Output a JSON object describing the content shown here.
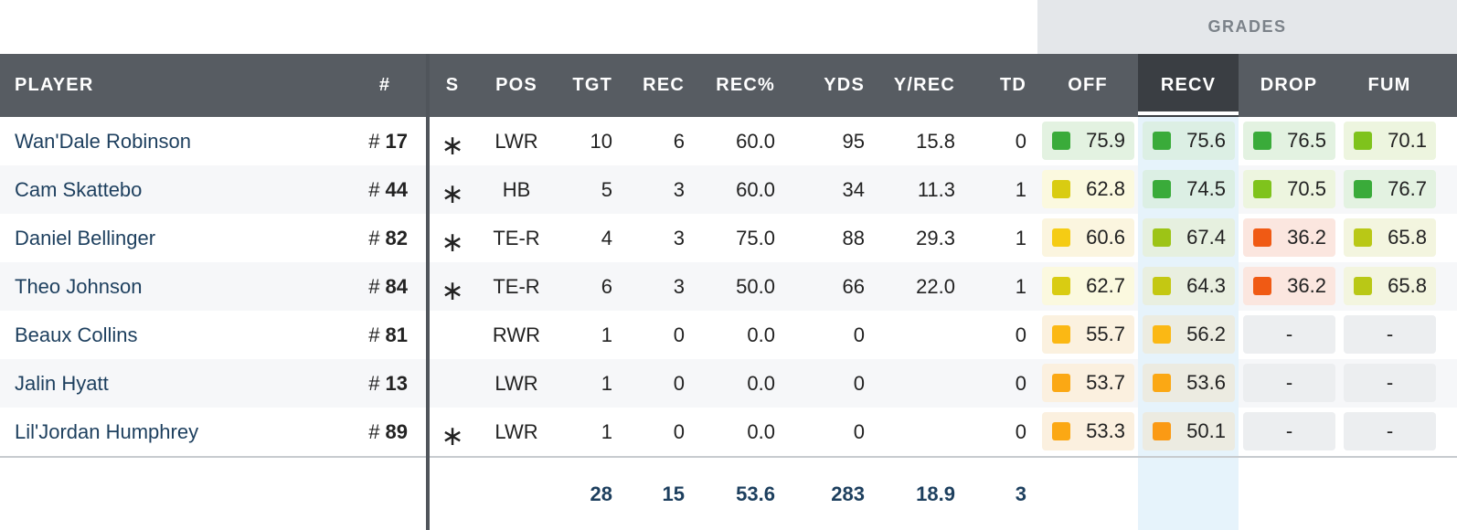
{
  "grades_label": "GRADES",
  "columns": {
    "player": "PLAYER",
    "jersey": "#",
    "s": "S",
    "pos": "POS",
    "tgt": "TGT",
    "rec": "REC",
    "rec_pct": "REC%",
    "yds": "YDS",
    "y_rec": "Y/REC",
    "td": "TD",
    "off": "OFF",
    "recv": "RECV",
    "drop": "DROP",
    "fum": "FUM"
  },
  "jersey_prefix": "#",
  "starter_mark": "∗",
  "empty_grade": "-",
  "colors": {
    "header_bg": "#575c62",
    "active_header_bg": "#3a3e43",
    "name_color": "#1d3f5e"
  },
  "players": [
    {
      "name": "Wan'Dale Robinson",
      "number": "17",
      "starter": true,
      "pos": "LWR",
      "tgt": "10",
      "rec": "6",
      "rec_pct": "60.0",
      "yds": "95",
      "y_rec": "15.8",
      "td": "0",
      "off": {
        "value": "75.9",
        "color": "#3aab3a",
        "bg": "#e3f2e1"
      },
      "recv": {
        "value": "75.6",
        "color": "#3aab3a",
        "bg": "#dcefe4"
      },
      "drop": {
        "value": "76.5",
        "color": "#3aab3a",
        "bg": "#e3f2e1"
      },
      "fum": {
        "value": "70.1",
        "color": "#7fc31c",
        "bg": "#edf5df"
      }
    },
    {
      "name": "Cam Skattebo",
      "number": "44",
      "starter": true,
      "pos": "HB",
      "tgt": "5",
      "rec": "3",
      "rec_pct": "60.0",
      "yds": "34",
      "y_rec": "11.3",
      "td": "1",
      "off": {
        "value": "62.8",
        "color": "#d9cc12",
        "bg": "#fbf9df"
      },
      "recv": {
        "value": "74.5",
        "color": "#3aab3a",
        "bg": "#dcefe4"
      },
      "drop": {
        "value": "70.5",
        "color": "#7fc31c",
        "bg": "#edf5df"
      },
      "fum": {
        "value": "76.7",
        "color": "#3aab3a",
        "bg": "#e3f2e1"
      }
    },
    {
      "name": "Daniel Bellinger",
      "number": "82",
      "starter": true,
      "pos": "TE-R",
      "tgt": "4",
      "rec": "3",
      "rec_pct": "75.0",
      "yds": "88",
      "y_rec": "29.3",
      "td": "1",
      "off": {
        "value": "60.6",
        "color": "#f5cc14",
        "bg": "#fbf5df"
      },
      "recv": {
        "value": "67.4",
        "color": "#9dc416",
        "bg": "#e6f0df"
      },
      "drop": {
        "value": "36.2",
        "color": "#f05a14",
        "bg": "#fbe6df"
      },
      "fum": {
        "value": "65.8",
        "color": "#b9c816",
        "bg": "#f3f5df"
      }
    },
    {
      "name": "Theo Johnson",
      "number": "84",
      "starter": true,
      "pos": "TE-R",
      "tgt": "6",
      "rec": "3",
      "rec_pct": "50.0",
      "yds": "66",
      "y_rec": "22.0",
      "td": "1",
      "off": {
        "value": "62.7",
        "color": "#d9cc12",
        "bg": "#fbf9df"
      },
      "recv": {
        "value": "64.3",
        "color": "#c4c812",
        "bg": "#e9efe0"
      },
      "drop": {
        "value": "36.2",
        "color": "#f05a14",
        "bg": "#fbe6df"
      },
      "fum": {
        "value": "65.8",
        "color": "#b9c816",
        "bg": "#f3f5df"
      }
    },
    {
      "name": "Beaux Collins",
      "number": "81",
      "starter": false,
      "pos": "RWR",
      "tgt": "1",
      "rec": "0",
      "rec_pct": "0.0",
      "yds": "0",
      "y_rec": "",
      "td": "0",
      "off": {
        "value": "55.7",
        "color": "#fbb814",
        "bg": "#fbf1df"
      },
      "recv": {
        "value": "56.2",
        "color": "#fbb814",
        "bg": "#ecece1"
      },
      "drop": null,
      "fum": null
    },
    {
      "name": "Jalin Hyatt",
      "number": "13",
      "starter": false,
      "pos": "LWR",
      "tgt": "1",
      "rec": "0",
      "rec_pct": "0.0",
      "yds": "0",
      "y_rec": "",
      "td": "0",
      "off": {
        "value": "53.7",
        "color": "#fba814",
        "bg": "#fbf0df"
      },
      "recv": {
        "value": "53.6",
        "color": "#fba814",
        "bg": "#ecebe1"
      },
      "drop": null,
      "fum": null
    },
    {
      "name": "Lil'Jordan Humphrey",
      "number": "89",
      "starter": true,
      "pos": "LWR",
      "tgt": "1",
      "rec": "0",
      "rec_pct": "0.0",
      "yds": "0",
      "y_rec": "",
      "td": "0",
      "off": {
        "value": "53.3",
        "color": "#fba814",
        "bg": "#fbf0df"
      },
      "recv": {
        "value": "50.1",
        "color": "#fb9a14",
        "bg": "#ecebe1"
      },
      "drop": null,
      "fum": null
    }
  ],
  "totals": {
    "tgt": "28",
    "rec": "15",
    "rec_pct": "53.6",
    "yds": "283",
    "y_rec": "18.9",
    "td": "3"
  }
}
